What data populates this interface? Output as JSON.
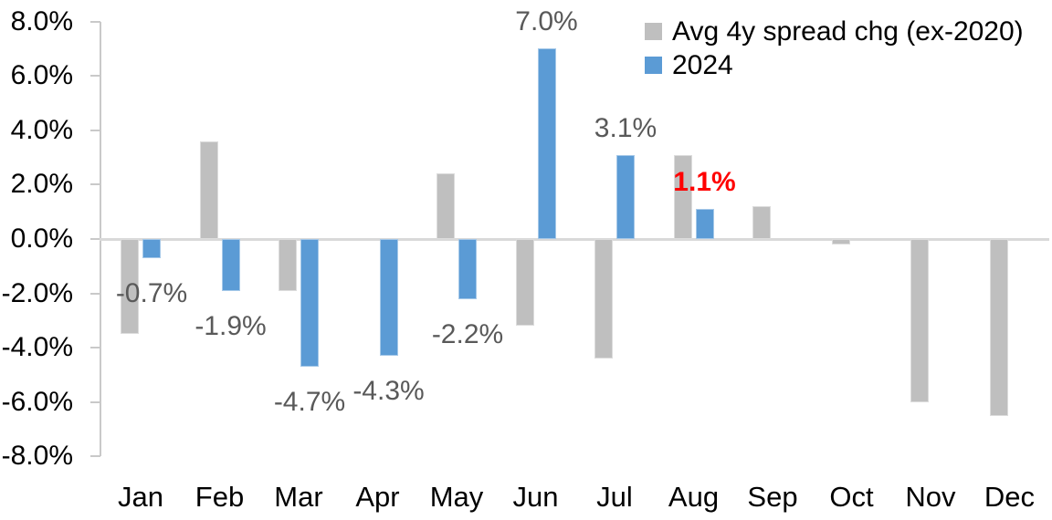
{
  "chart_data": {
    "type": "bar",
    "title": "",
    "xlabel": "",
    "ylabel": "",
    "categories": [
      "Jan",
      "Feb",
      "Mar",
      "Apr",
      "May",
      "Jun",
      "Jul",
      "Aug",
      "Sep",
      "Oct",
      "Nov",
      "Dec"
    ],
    "series": [
      {
        "name": "Avg 4y spread chg (ex-2020)",
        "color": "#BFBFBF",
        "values": [
          -3.5,
          3.6,
          -1.9,
          0.0,
          2.4,
          -3.2,
          -4.4,
          3.1,
          1.2,
          -0.2,
          -6.0,
          -6.5
        ]
      },
      {
        "name": "2024",
        "color": "#5B9BD5",
        "values": [
          -0.7,
          -1.9,
          -4.7,
          -4.3,
          -2.2,
          7.0,
          3.1,
          1.1,
          null,
          null,
          null,
          null
        ]
      }
    ],
    "data_labels": [
      {
        "category": "Jan",
        "text": "-0.7%",
        "emphasis": false
      },
      {
        "category": "Feb",
        "text": "-1.9%",
        "emphasis": false
      },
      {
        "category": "Mar",
        "text": "-4.7%",
        "emphasis": false
      },
      {
        "category": "Apr",
        "text": "-4.3%",
        "emphasis": false
      },
      {
        "category": "May",
        "text": "-2.2%",
        "emphasis": false
      },
      {
        "category": "Jun",
        "text": "7.0%",
        "emphasis": false
      },
      {
        "category": "Jul",
        "text": "3.1%",
        "emphasis": false
      },
      {
        "category": "Aug",
        "text": "1.1%",
        "emphasis": true
      }
    ],
    "y_ticks": [
      {
        "value": 8,
        "label": "8.0%"
      },
      {
        "value": 6,
        "label": "6.0%"
      },
      {
        "value": 4,
        "label": "4.0%"
      },
      {
        "value": 2,
        "label": "2.0%"
      },
      {
        "value": 0,
        "label": "0.0%"
      },
      {
        "value": -2,
        "label": "-2.0%"
      },
      {
        "value": -4,
        "label": "-4.0%"
      },
      {
        "value": -6,
        "label": "-6.0%"
      },
      {
        "value": -8,
        "label": "-8.0%"
      }
    ],
    "ylim": [
      -8,
      8
    ],
    "grid": false,
    "legend_position": "top-right"
  },
  "colors": {
    "label_normal": "#595959",
    "label_emphasis": "#FF0000",
    "axis_line": "#C9C9C9",
    "zero_line": "#D9D9D9",
    "axis_text": "#000000"
  }
}
